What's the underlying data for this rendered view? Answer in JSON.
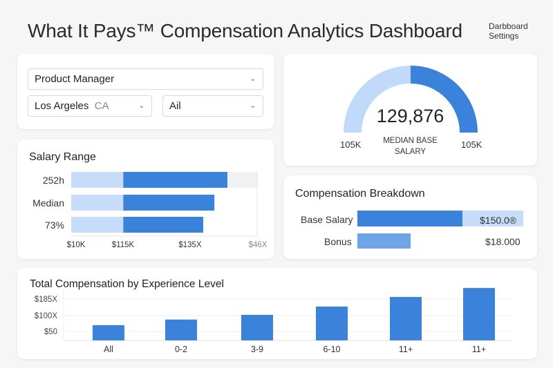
{
  "header": {
    "title": "What It Pays™ Compensation Analytics Dashboard",
    "settings_line1": "Darbboard",
    "settings_line2": "Settings"
  },
  "filters": {
    "role": "Product Manager",
    "location": "Los Argeles",
    "location_state": "CA",
    "level": "Ail"
  },
  "gauge": {
    "value": "129,876",
    "label_line1": "MEDIAN BASE",
    "label_line2": "SALARY",
    "left_label": "105K",
    "right_label": "105K",
    "fill_fraction": 0.5,
    "colors": {
      "light": "#c2dafa",
      "dark": "#3a82da"
    }
  },
  "salary_range": {
    "title": "Salary Range",
    "rows": [
      {
        "label": "252h",
        "start": 0.28,
        "end": 0.84
      },
      {
        "label": "Median",
        "start": 0.28,
        "end": 0.77
      },
      {
        "label": "73%",
        "start": 0.28,
        "end": 0.71
      }
    ],
    "ticks": [
      "$10K",
      "$115K",
      "$135X",
      "$46X"
    ]
  },
  "breakdown": {
    "title": "Compensation Breakdown",
    "items": [
      {
        "label": "Base Salary",
        "value": "$150.0®",
        "fill": 0.63
      },
      {
        "label": "Bonus",
        "value": "$18.000",
        "fill": 0.32
      }
    ]
  },
  "chart_data": {
    "type": "bar",
    "title": "Total Compensation by Experience Level",
    "categories": [
      "All",
      "0-2",
      "3-9",
      "6-10",
      "11+",
      "11+"
    ],
    "values": [
      68,
      93,
      114,
      151,
      194,
      234
    ],
    "yticks": [
      "$185X",
      "$100X",
      "$50"
    ],
    "grid": true,
    "color": "#3a82da"
  }
}
